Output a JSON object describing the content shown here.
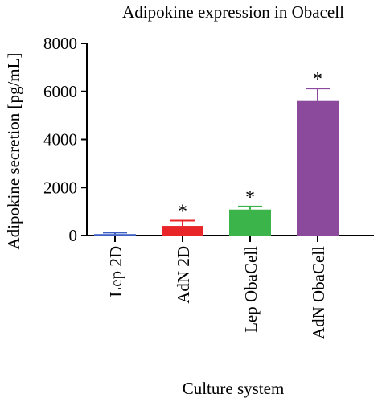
{
  "chart_data": {
    "type": "bar",
    "title": "Adipokine expression in Obacell",
    "xlabel": "Culture system",
    "ylabel": "Adipokine secretion [pg/mL]",
    "categories": [
      "Lep 2D",
      "AdN 2D",
      "Lep ObaCell",
      "AdN ObaCell"
    ],
    "values": [
      60,
      400,
      1080,
      5600
    ],
    "errors": [
      60,
      220,
      130,
      520
    ],
    "significance": [
      "",
      "*",
      "*",
      "*"
    ],
    "colors": [
      "#3d5fc4",
      "#e8262a",
      "#3bb44a",
      "#8b4a9c"
    ],
    "ylim": [
      0,
      8000
    ],
    "yticks": [
      0,
      2000,
      4000,
      6000,
      8000
    ],
    "grid": false,
    "error_bars": "upper"
  }
}
